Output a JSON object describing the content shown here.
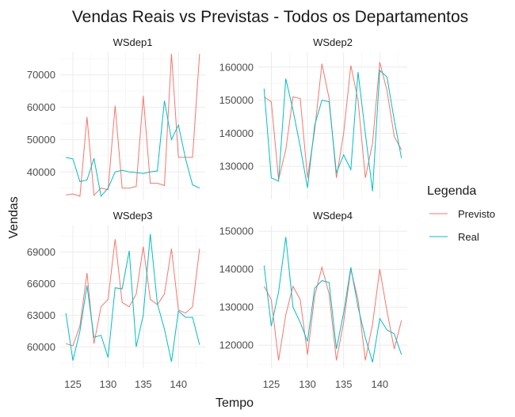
{
  "title": "Vendas Reais vs Previstas - Todos os Departamentos",
  "xlabel": "Tempo",
  "ylabel": "Vendas",
  "legend": {
    "title": "Legenda",
    "placement": "right",
    "items": [
      {
        "label": "Previsto",
        "color": "#F8766D"
      },
      {
        "label": "Real",
        "color": "#00BFC4"
      }
    ]
  },
  "chart_data": {
    "type": "line",
    "facets": [
      {
        "name": "WSdep1",
        "xlim": [
          123.2,
          143.8
        ],
        "ylim": [
          31500,
          77000
        ],
        "xticks": [
          125,
          130,
          135,
          140
        ],
        "yticks": [
          40000,
          50000,
          60000,
          70000
        ],
        "ytick_labels": [
          "40000",
          "50000",
          "60000",
          "70000"
        ],
        "x": [
          124,
          125,
          126,
          127,
          128,
          129,
          130,
          131,
          132,
          133,
          134,
          135,
          136,
          137,
          138,
          139,
          140,
          141,
          142,
          143
        ],
        "series": [
          {
            "name": "Previsto",
            "values": [
              32900,
              33200,
              32500,
              57000,
              32800,
              35000,
              34500,
              60500,
              35000,
              35000,
              35500,
              63500,
              36500,
              36500,
              35800,
              76500,
              44500,
              44500,
              44500,
              76500
            ]
          },
          {
            "name": "Real",
            "values": [
              44500,
              44000,
              37000,
              37500,
              44200,
              32500,
              35000,
              40000,
              40500,
              40000,
              39800,
              39500,
              40000,
              40300,
              62000,
              50000,
              54500,
              44200,
              36000,
              35000
            ]
          }
        ]
      },
      {
        "name": "WSdep2",
        "xlim": [
          123.2,
          143.8
        ],
        "ylim": [
          120000,
          164500
        ],
        "xticks": [
          125,
          130,
          135,
          140
        ],
        "yticks": [
          130000,
          140000,
          150000,
          160000
        ],
        "ytick_labels": [
          "130000",
          "140000",
          "150000",
          "160000"
        ],
        "x": [
          124,
          125,
          126,
          127,
          128,
          129,
          130,
          131,
          132,
          133,
          134,
          135,
          136,
          137,
          138,
          139,
          140,
          141,
          142,
          143
        ],
        "series": [
          {
            "name": "Previsto",
            "values": [
              151000,
              149500,
              126000,
              135000,
              151000,
              150500,
              126500,
              141000,
              161000,
              150500,
              126500,
              140000,
              160500,
              150000,
              126500,
              137000,
              161500,
              153000,
              139000,
              135000
            ]
          },
          {
            "name": "Real",
            "values": [
              153500,
              126500,
              125500,
              156500,
              147000,
              136000,
              123500,
              142500,
              150000,
              149500,
              128000,
              133500,
              129000,
              158500,
              140000,
              122500,
              159000,
              157000,
              144000,
              132500
            ]
          }
        ]
      },
      {
        "name": "WSdep3",
        "xlim": [
          123.2,
          143.8
        ],
        "ylim": [
          58000,
          71500
        ],
        "xticks": [
          125,
          130,
          135,
          140
        ],
        "yticks": [
          60000,
          63000,
          66000,
          69000
        ],
        "ytick_labels": [
          "60000",
          "63000",
          "66000",
          "69000"
        ],
        "x": [
          124,
          125,
          126,
          127,
          128,
          129,
          130,
          131,
          132,
          133,
          134,
          135,
          136,
          137,
          138,
          139,
          140,
          141,
          142,
          143
        ],
        "series": [
          {
            "name": "Previsto",
            "values": [
              60300,
              60100,
              62000,
              67000,
              60300,
              63800,
              64500,
              70200,
              64200,
              63800,
              65000,
              69500,
              64500,
              64000,
              65000,
              69300,
              63500,
              63200,
              63800,
              69300
            ]
          },
          {
            "name": "Real",
            "values": [
              63200,
              58700,
              61500,
              65800,
              60900,
              61100,
              59000,
              65600,
              65500,
              69100,
              60000,
              63000,
              70700,
              64100,
              61700,
              58600,
              63400,
              62800,
              62800,
              60200
            ]
          }
        ]
      },
      {
        "name": "WSdep4",
        "xlim": [
          123.2,
          143.8
        ],
        "ylim": [
          114000,
          151500
        ],
        "xticks": [
          125,
          130,
          135,
          140
        ],
        "yticks": [
          120000,
          130000,
          140000,
          150000
        ],
        "ytick_labels": [
          "120000",
          "130000",
          "140000",
          "150000"
        ],
        "x": [
          124,
          125,
          126,
          127,
          128,
          129,
          130,
          131,
          132,
          133,
          134,
          135,
          136,
          137,
          138,
          139,
          140,
          141,
          142,
          143
        ],
        "series": [
          {
            "name": "Previsto",
            "values": [
              135500,
              132000,
              116000,
              128000,
              135500,
              132000,
              117500,
              133000,
              140500,
              133500,
              116000,
              126000,
              140000,
              132000,
              116000,
              125500,
              140000,
              129000,
              119000,
              126500
            ]
          },
          {
            "name": "Real",
            "values": [
              141000,
              125000,
              134000,
              148500,
              130000,
              126000,
              121000,
              135000,
              137000,
              136500,
              119000,
              128500,
              140500,
              130000,
              122000,
              115500,
              127000,
              124000,
              123000,
              117500
            ]
          }
        ]
      }
    ]
  }
}
